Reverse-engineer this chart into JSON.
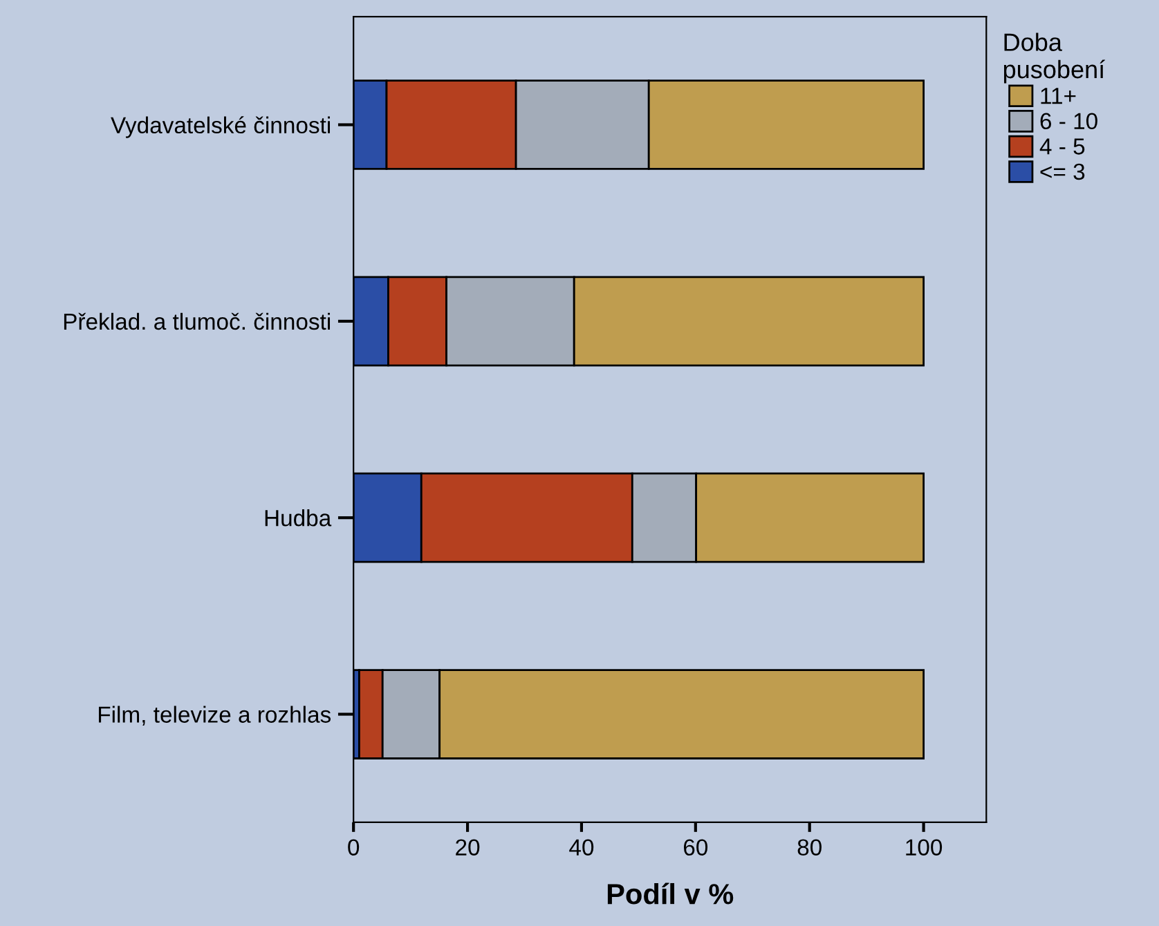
{
  "chart_data": {
    "type": "bar",
    "orientation": "horizontal",
    "stacked": true,
    "xlabel": "Podíl v %",
    "legend_title": "Doba\npusobení",
    "legend": "top right",
    "grid": false,
    "categories": [
      "Vydavatelské činnosti",
      "Překlad. a tlumoč. činnosti",
      "Hudba",
      "Film, televize a rozhlas"
    ],
    "xlim": [
      0,
      111
    ],
    "xticks": [
      0,
      20,
      40,
      60,
      80,
      100
    ],
    "series": [
      {
        "name": "<= 3",
        "color": "#2b4ea6",
        "values": [
          5.8,
          6.1,
          11.9,
          1.0
        ]
      },
      {
        "name": "4 - 5",
        "color": "#b5401f",
        "values": [
          22.7,
          10.2,
          37.0,
          4.1
        ]
      },
      {
        "name": "6 - 10",
        "color": "#a3acb9",
        "values": [
          23.3,
          22.4,
          11.2,
          10.0
        ]
      },
      {
        "name": "11+",
        "color": "#bf9d4f",
        "values": [
          48.2,
          61.3,
          39.9,
          84.9
        ]
      }
    ]
  }
}
